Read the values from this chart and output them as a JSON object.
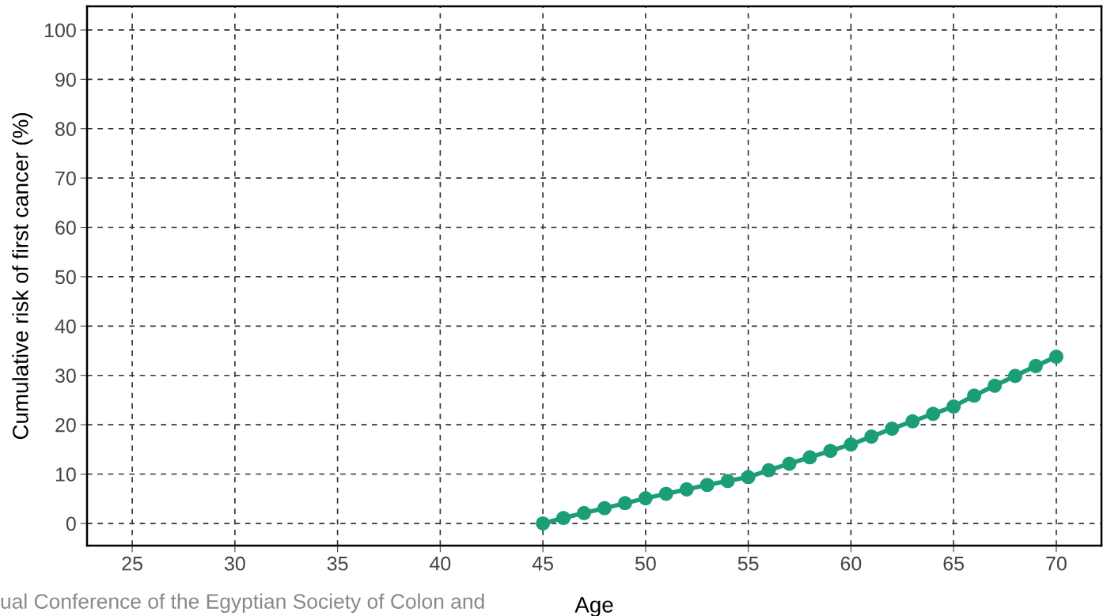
{
  "chart_data": {
    "type": "line",
    "xlabel": "Age",
    "ylabel": "Cumulative risk of first cancer (%)",
    "x": [
      45,
      46,
      47,
      48,
      49,
      50,
      51,
      52,
      53,
      54,
      55,
      56,
      57,
      58,
      59,
      60,
      61,
      62,
      63,
      64,
      65,
      66,
      67,
      68,
      69,
      70
    ],
    "series": [
      {
        "color": "#1b9e77",
        "values": [
          0,
          1.1,
          2.1,
          3.1,
          4.1,
          5.1,
          6.0,
          6.9,
          7.8,
          8.6,
          9.4,
          10.8,
          12.1,
          13.4,
          14.7,
          16.0,
          17.6,
          19.2,
          20.7,
          22.2,
          23.7,
          25.9,
          27.9,
          29.9,
          31.9,
          33.8
        ]
      }
    ],
    "xlim": [
      22.8,
      72.2
    ],
    "xticks": [
      25,
      30,
      35,
      40,
      45,
      50,
      55,
      60,
      65,
      70
    ],
    "ylim": [
      -4.5,
      104.8
    ],
    "yticks": [
      0,
      10,
      20,
      30,
      40,
      50,
      60,
      70,
      80,
      90,
      100
    ],
    "grid": true,
    "marker": "circle",
    "line_style": "solid",
    "legend": false,
    "annotations": [
      "ual Conference of the Egyptian Society of Colon and"
    ]
  }
}
